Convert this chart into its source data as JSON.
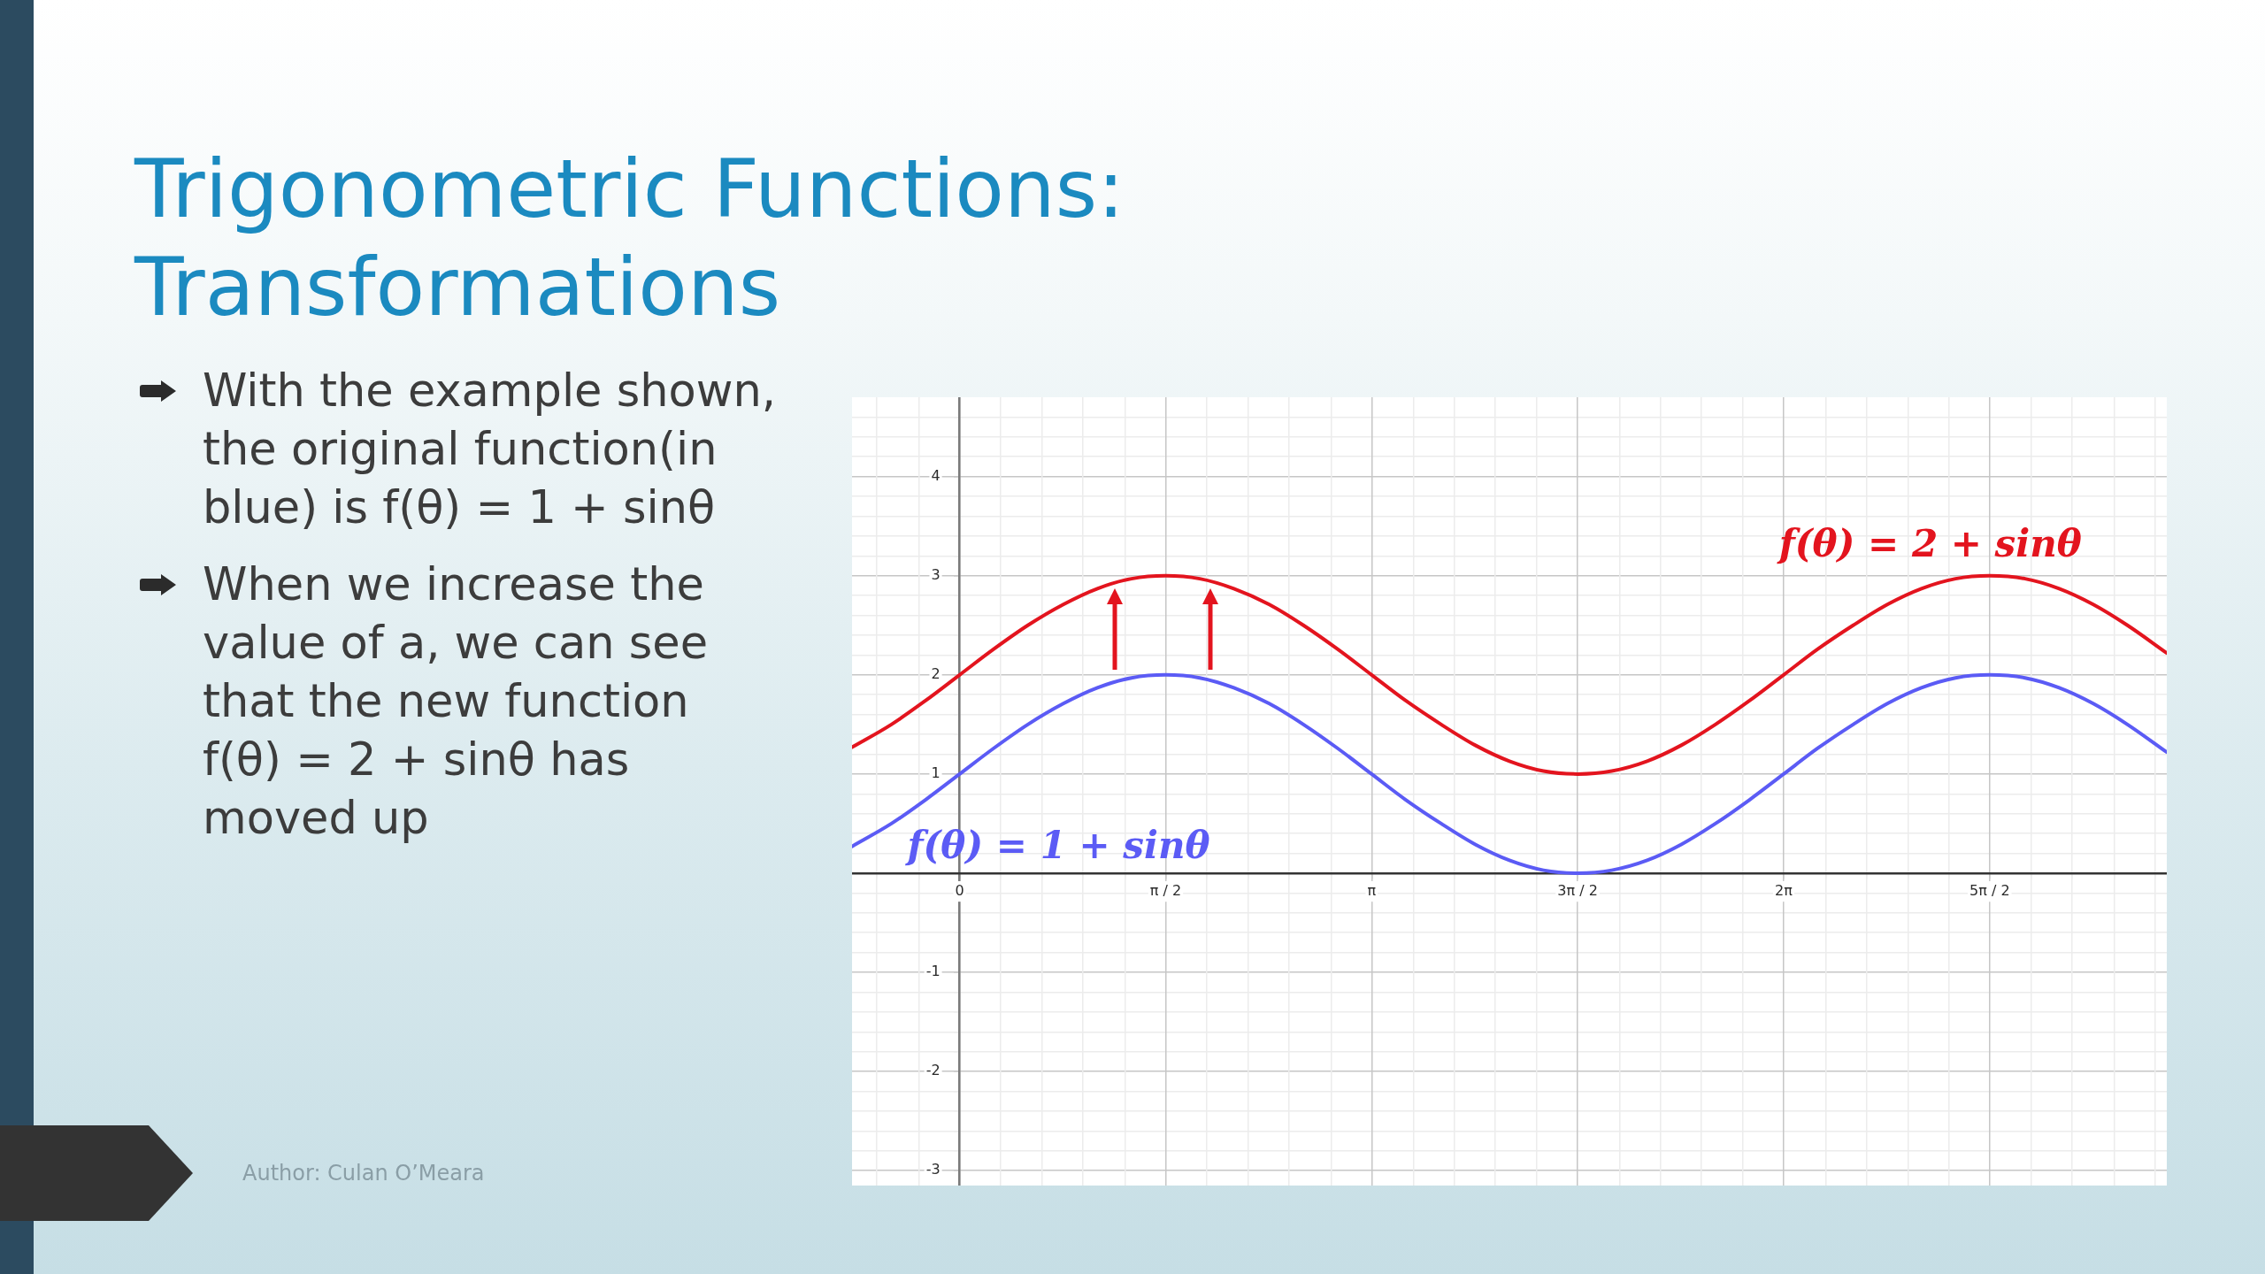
{
  "chart_data": {
    "type": "line",
    "title": "Trigonometric Functions: Transformations",
    "annotations": [
      "With the example shown, the original function(in blue) is f(θ) = 1 + sinθ",
      "When we increase the value of a, we can see that the new function f(θ) = 2 + sinθ has moved up",
      "Author: Culan O’Meara"
    ],
    "x": [
      -0.82,
      -0.52,
      -0.26,
      0,
      0.26,
      0.52,
      0.79,
      1.05,
      1.31,
      1.57,
      1.83,
      2.09,
      2.36,
      2.62,
      2.88,
      3.14,
      3.4,
      3.67,
      3.93,
      4.19,
      4.45,
      4.71,
      4.97,
      5.24,
      5.5,
      5.76,
      6.02,
      6.28,
      6.54,
      6.81,
      7.07,
      7.33,
      7.59,
      7.85,
      8.12,
      8.38,
      8.64,
      8.9,
      9.2
    ],
    "series": [
      {
        "name": "f(θ) = 2 + sinθ",
        "color": "#e3141e",
        "values": [
          1.27,
          1.5,
          1.74,
          2,
          2.26,
          2.5,
          2.71,
          2.87,
          2.97,
          3,
          2.97,
          2.87,
          2.71,
          2.5,
          2.26,
          2,
          1.74,
          1.5,
          1.29,
          1.13,
          1.03,
          1,
          1.03,
          1.13,
          1.29,
          1.5,
          1.74,
          2,
          2.26,
          2.5,
          2.71,
          2.87,
          2.97,
          3,
          2.97,
          2.87,
          2.71,
          2.5,
          2.22
        ]
      },
      {
        "name": "f(θ) = 1 + sinθ",
        "color": "#5b5bf5",
        "values": [
          0.27,
          0.5,
          0.74,
          1,
          1.26,
          1.5,
          1.71,
          1.87,
          1.97,
          2,
          1.97,
          1.87,
          1.71,
          1.5,
          1.26,
          1,
          0.74,
          0.5,
          0.29,
          0.13,
          0.03,
          0,
          0.03,
          0.13,
          0.29,
          0.5,
          0.74,
          1,
          1.26,
          1.5,
          1.71,
          1.87,
          1.97,
          2,
          1.97,
          1.87,
          1.71,
          1.5,
          1.22
        ]
      }
    ],
    "xlim": [
      -0.82,
      9.2
    ],
    "ylim": [
      -3.15,
      4.8
    ],
    "xticks": [
      {
        "value": -0.63,
        "label": null
      },
      {
        "value": -0.31,
        "label": null
      },
      0,
      {
        "value": 0.31,
        "label": null
      },
      {
        "value": 0.63,
        "label": null
      },
      {
        "value": 0.94,
        "label": null
      },
      {
        "value": 1.26,
        "label": null
      },
      {
        "value": 1.57,
        "label": "π / 2"
      },
      {
        "value": 1.88,
        "label": null
      },
      {
        "value": 2.2,
        "label": null
      },
      {
        "value": 2.51,
        "label": null
      },
      {
        "value": 2.83,
        "label": null
      },
      {
        "value": 3.14,
        "label": "π"
      },
      {
        "value": 3.46,
        "label": null
      },
      {
        "value": 3.77,
        "label": null
      },
      {
        "value": 4.08,
        "label": null
      },
      {
        "value": 4.4,
        "label": null
      },
      {
        "value": 4.71,
        "label": "3π / 2"
      },
      {
        "value": 5.03,
        "label": null
      },
      {
        "value": 5.34,
        "label": null
      },
      {
        "value": 5.65,
        "label": null
      },
      {
        "value": 5.97,
        "label": null
      },
      {
        "value": 6.28,
        "label": "2π"
      },
      {
        "value": 6.6,
        "label": null
      },
      {
        "value": 6.91,
        "label": null
      },
      {
        "value": 7.23,
        "label": null
      },
      {
        "value": 7.54,
        "label": null
      },
      {
        "value": 7.85,
        "label": "5π / 2"
      },
      {
        "value": 8.17,
        "label": null
      },
      {
        "value": 8.48,
        "label": null
      },
      {
        "value": 8.8,
        "label": null
      },
      {
        "value": 9.11,
        "label": null
      }
    ],
    "yticks": [
      -3,
      {
        "value": -2.8,
        "label": null
      },
      {
        "value": -2.6,
        "label": null
      },
      {
        "value": -2.4,
        "label": null
      },
      {
        "value": -2.2,
        "label": null
      },
      -2,
      {
        "value": -1.8,
        "label": null
      },
      {
        "value": -1.6,
        "label": null
      },
      {
        "value": -1.4,
        "label": null
      },
      {
        "value": -1.2,
        "label": null
      },
      -1,
      {
        "value": -0.8,
        "label": null
      },
      {
        "value": -0.6,
        "label": null
      },
      {
        "value": -0.4,
        "label": null
      },
      {
        "value": -0.2,
        "label": null
      },
      {
        "value": 0,
        "label": null
      },
      {
        "value": 0.2,
        "label": null
      },
      {
        "value": 0.4,
        "label": null
      },
      {
        "value": 0.6,
        "label": null
      },
      {
        "value": 0.8,
        "label": null
      },
      1,
      {
        "value": 1.2,
        "label": null
      },
      {
        "value": 1.4,
        "label": null
      },
      {
        "value": 1.6,
        "label": null
      },
      {
        "value": 1.8,
        "label": null
      },
      2,
      {
        "value": 2.2,
        "label": null
      },
      {
        "value": 2.4,
        "label": null
      },
      {
        "value": 2.6,
        "label": null
      },
      {
        "value": 2.8,
        "label": null
      },
      3,
      {
        "value": 3.2,
        "label": null
      },
      {
        "value": 3.4,
        "label": null
      },
      {
        "value": 3.6,
        "label": null
      },
      {
        "value": 3.8,
        "label": null
      },
      4,
      {
        "value": 4.2,
        "label": null
      },
      {
        "value": 4.4,
        "label": null
      },
      {
        "value": 4.6,
        "label": null
      }
    ],
    "grid": true,
    "marker": "none",
    "line_style": "solid"
  }
}
